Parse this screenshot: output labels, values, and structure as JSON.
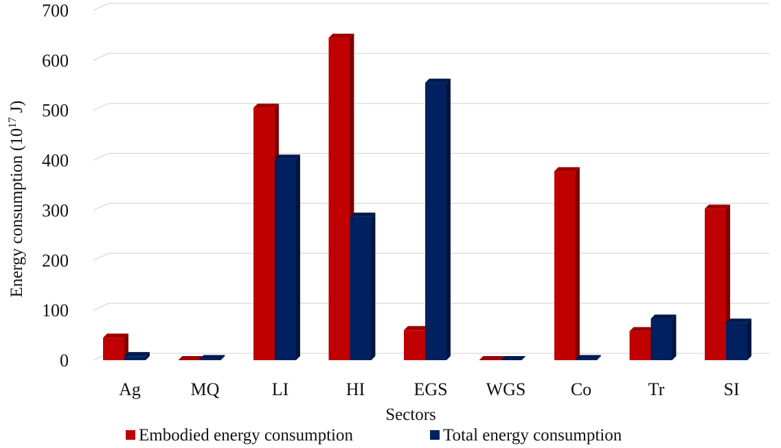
{
  "chart_data": {
    "type": "bar",
    "title": "",
    "xlabel": "Sectors",
    "ylabel": {
      "prefix": "Energy consumption (10",
      "superscript": "17",
      "suffix": " J)"
    },
    "ylim": [
      0,
      700
    ],
    "yticks": [
      0,
      100,
      200,
      300,
      400,
      500,
      600,
      700
    ],
    "grid": true,
    "legend_position": "bottom",
    "categories": [
      "Ag",
      "MQ",
      "LI",
      "HI",
      "EGS",
      "WGS",
      "Co",
      "Tr",
      "SI"
    ],
    "series": [
      {
        "name": "Embodied energy consumption",
        "color": "#c00000",
        "values": [
          45,
          0,
          505,
          645,
          60,
          0,
          378,
          58,
          303
        ]
      },
      {
        "name": "Total energy consumption",
        "color": "#002060",
        "values": [
          8,
          2,
          403,
          287,
          555,
          0,
          2,
          83,
          75
        ]
      }
    ]
  }
}
